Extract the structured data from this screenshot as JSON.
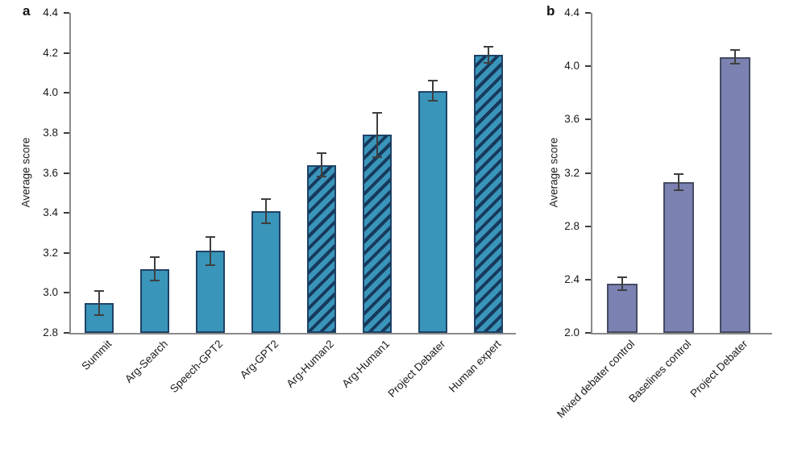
{
  "figure": {
    "type": "two-panel bar chart",
    "background": "#ffffff"
  },
  "chart_data": [
    {
      "type": "bar",
      "panel_label": "a",
      "title": "",
      "xlabel": "",
      "ylabel": "Average score",
      "ylim": [
        2.8,
        4.4
      ],
      "ytick_step": 0.2,
      "ytick_labels": [
        "2.8",
        "3.0",
        "3.2",
        "3.4",
        "3.6",
        "3.8",
        "4.0",
        "4.2",
        "4.4"
      ],
      "categories": [
        "Summit",
        "Arg-Search",
        "Speech-GPT2",
        "Arg-GPT2",
        "Arg-Human2",
        "Arg-Human1",
        "Project Debater",
        "Human expert"
      ],
      "values": [
        2.95,
        3.12,
        3.21,
        3.41,
        3.64,
        3.79,
        4.01,
        4.19
      ],
      "errors": [
        0.06,
        0.06,
        0.07,
        0.06,
        0.06,
        0.11,
        0.05,
        0.04
      ],
      "hatched": [
        false,
        false,
        false,
        false,
        true,
        true,
        false,
        true
      ],
      "hatch_style": "diagonal-rising-right",
      "bar_color": "#3a95ba",
      "bar_edge_color": "#1f4266",
      "hatch_color": "#17395c",
      "error_color": "#3f3f3f",
      "axis_color": "#8a8a8a",
      "grid": false,
      "legend": "none"
    },
    {
      "type": "bar",
      "panel_label": "b",
      "title": "",
      "xlabel": "",
      "ylabel": "Average score",
      "ylim": [
        2.0,
        4.4
      ],
      "ytick_step": 0.4,
      "ytick_labels": [
        "2.0",
        "2.4",
        "2.8",
        "3.2",
        "3.6",
        "4.0",
        "4.4"
      ],
      "categories": [
        "Mixed debater control",
        "Baselines control",
        "Project Debater"
      ],
      "values": [
        2.37,
        3.13,
        4.07
      ],
      "errors": [
        0.05,
        0.06,
        0.05
      ],
      "hatched": [
        false,
        false,
        false
      ],
      "hatch_style": "none",
      "bar_color": "#7b81b1",
      "bar_edge_color": "#454b63",
      "hatch_color": "#454b63",
      "error_color": "#3f3f3f",
      "axis_color": "#8a8a8a",
      "grid": false,
      "legend": "none"
    }
  ]
}
